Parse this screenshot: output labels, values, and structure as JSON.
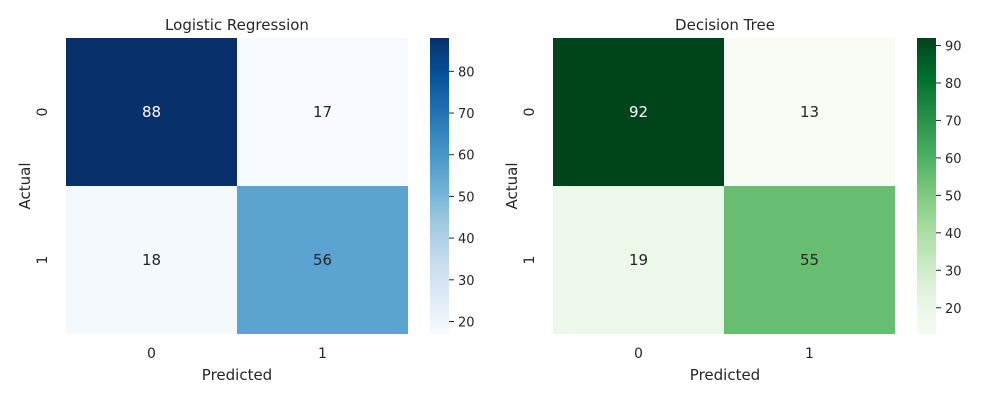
{
  "chart_data": [
    {
      "type": "heatmap",
      "title": "Logistic Regression",
      "xlabel": "Predicted",
      "ylabel": "Actual",
      "x_categories": [
        "0",
        "1"
      ],
      "y_categories": [
        "0",
        "1"
      ],
      "values": [
        [
          88,
          17
        ],
        [
          18,
          56
        ]
      ],
      "colormap": "Blues",
      "colors": {
        "low": "#f7fbff",
        "high": "#08306b"
      },
      "colorbar": {
        "min": 17,
        "max": 88,
        "ticks": [
          "20",
          "30",
          "40",
          "50",
          "60",
          "70",
          "80"
        ]
      }
    },
    {
      "type": "heatmap",
      "title": "Decision Tree",
      "xlabel": "Predicted",
      "ylabel": "Actual",
      "x_categories": [
        "0",
        "1"
      ],
      "y_categories": [
        "0",
        "1"
      ],
      "values": [
        [
          92,
          13
        ],
        [
          19,
          55
        ]
      ],
      "colormap": "Greens",
      "colors": {
        "low": "#f7fcf5",
        "high": "#00441b"
      },
      "colorbar": {
        "min": 13,
        "max": 92,
        "ticks": [
          "20",
          "30",
          "40",
          "50",
          "60",
          "70",
          "80",
          "90"
        ]
      }
    }
  ]
}
